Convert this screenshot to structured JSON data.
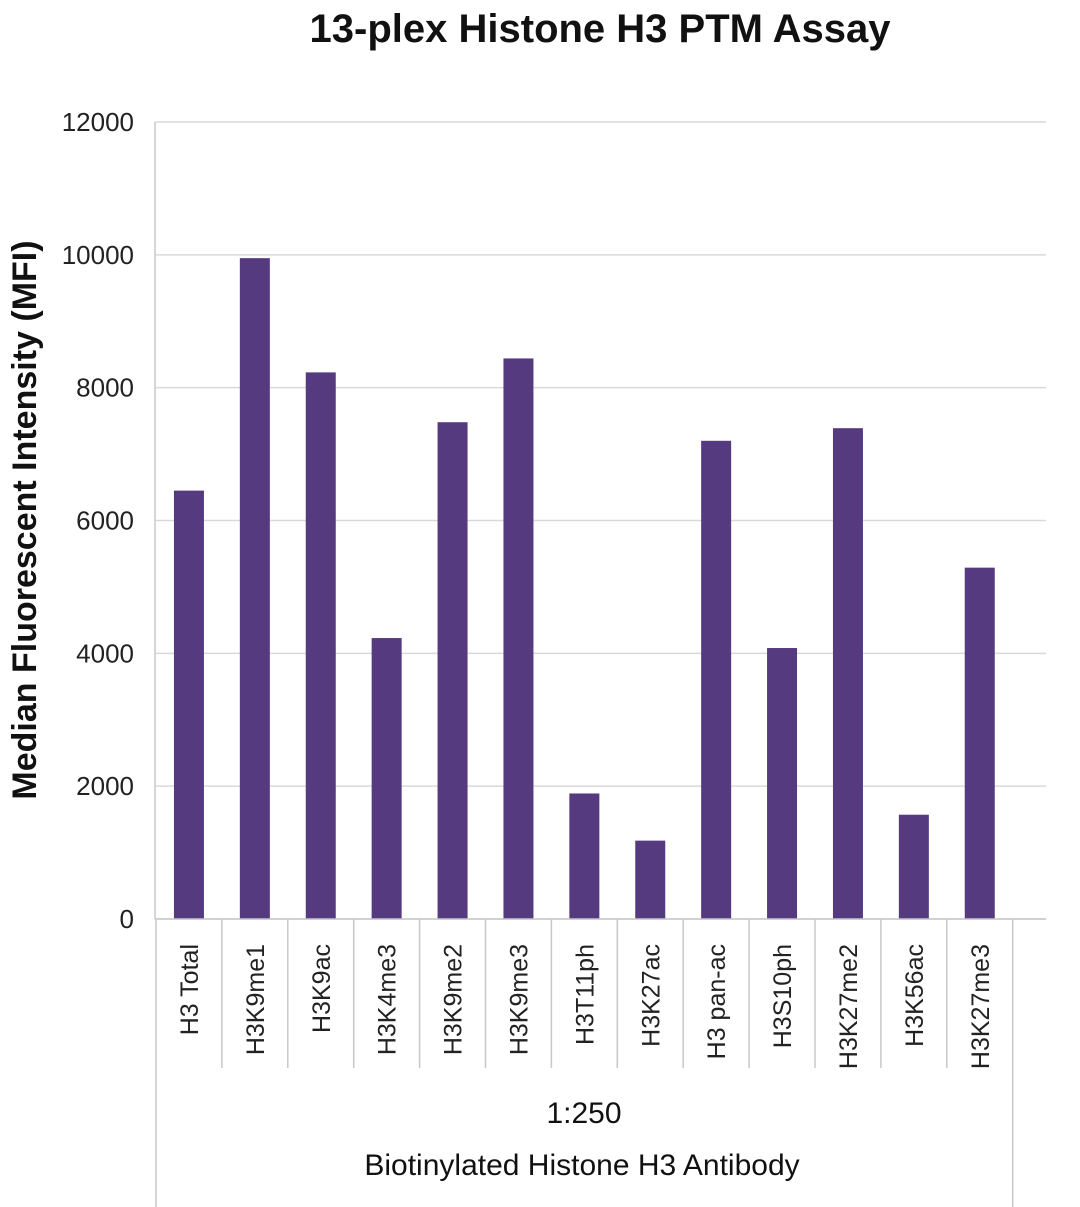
{
  "chart_data": {
    "type": "bar",
    "title": "13-plex Histone H3 PTM Assay",
    "ylabel": "Median Fluorescent Intensity (MFI)",
    "xlabel": "",
    "categories": [
      "H3 Total",
      "H3K9me1",
      "H3K9ac",
      "H3K4me3",
      "H3K9me2",
      "H3K9me3",
      "H3T11ph",
      "H3K27ac",
      "H3 pan-ac",
      "H3S10ph",
      "H3K27me2",
      "H3K56ac",
      "H3K27me3"
    ],
    "values": [
      6450,
      9950,
      8230,
      4230,
      7480,
      8440,
      1890,
      1180,
      7200,
      4080,
      7390,
      1570,
      5290
    ],
    "group_labels": [
      "1:250",
      "Biotinylated Histone H3 Antibody"
    ],
    "ylim": [
      0,
      12000
    ],
    "yticks": [
      "0",
      "2000",
      "4000",
      "6000",
      "8000",
      "10000",
      "12000"
    ],
    "grid": true,
    "legend": "none",
    "bar_color": "#553a80"
  }
}
